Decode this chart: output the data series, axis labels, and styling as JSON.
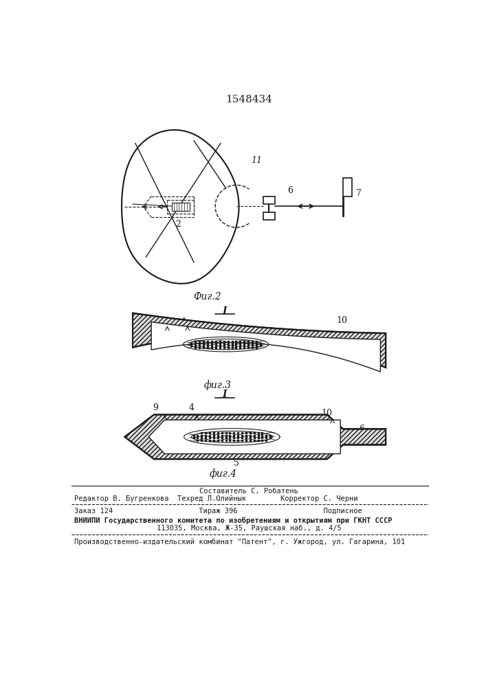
{
  "patent_number": "1548434",
  "bg_color": "#ffffff",
  "line_color": "#1a1a1a",
  "fig2_label": "Фиг.2",
  "fig3_label": "фиг.3",
  "fig4_label": "фиг.4",
  "footer_line1": "Составитель С. Робатень",
  "footer_line2": "Редактор В. Бугренкова  Техред Л.Олийнык        Корректор С. Черни",
  "footer_line3": "Заказ 124                    Тираж 396                    Подписное",
  "footer_line4": "ВНИИПИ Государственного комитета по изобретениям и открытиям при ГКНТ СССР",
  "footer_line5": "113035, Москва, Ж-35, Раушская наб., д. 4/5",
  "footer_line6": "Производственно-издательский комбинат \"Патент\", г. Ужгород, ул. Гагарина, 101"
}
